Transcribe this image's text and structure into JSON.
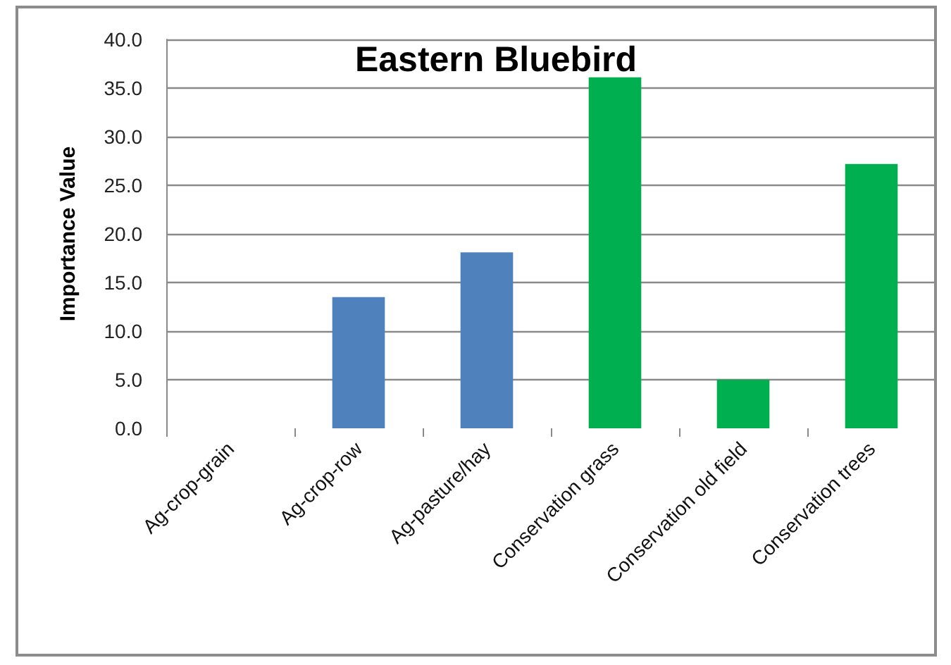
{
  "chart_data": {
    "type": "bar",
    "title": "Eastern Bluebird",
    "ylabel": "Importance Value",
    "categories": [
      "Ag-crop-grain",
      "Ag-crop-row",
      "Ag-pasture/hay",
      "Conservation grass",
      "Conservation old field",
      "Conservation trees"
    ],
    "values": [
      0,
      13.5,
      18.1,
      36.1,
      5.0,
      27.2
    ],
    "colors": [
      "#4f81bd",
      "#4f81bd",
      "#4f81bd",
      "#00b050",
      "#00b050",
      "#00b050"
    ],
    "ylim": [
      0,
      40
    ],
    "yticks": [
      {
        "value": 0,
        "label": "0.0"
      },
      {
        "value": 5,
        "label": "5.0"
      },
      {
        "value": 10,
        "label": "10.0"
      },
      {
        "value": 15,
        "label": "15.0"
      },
      {
        "value": 20,
        "label": "20.0"
      },
      {
        "value": 25,
        "label": "25.0"
      },
      {
        "value": 30,
        "label": "30.0"
      },
      {
        "value": 35,
        "label": "35.0"
      },
      {
        "value": 40,
        "label": "40.0"
      }
    ],
    "grid": "y"
  }
}
